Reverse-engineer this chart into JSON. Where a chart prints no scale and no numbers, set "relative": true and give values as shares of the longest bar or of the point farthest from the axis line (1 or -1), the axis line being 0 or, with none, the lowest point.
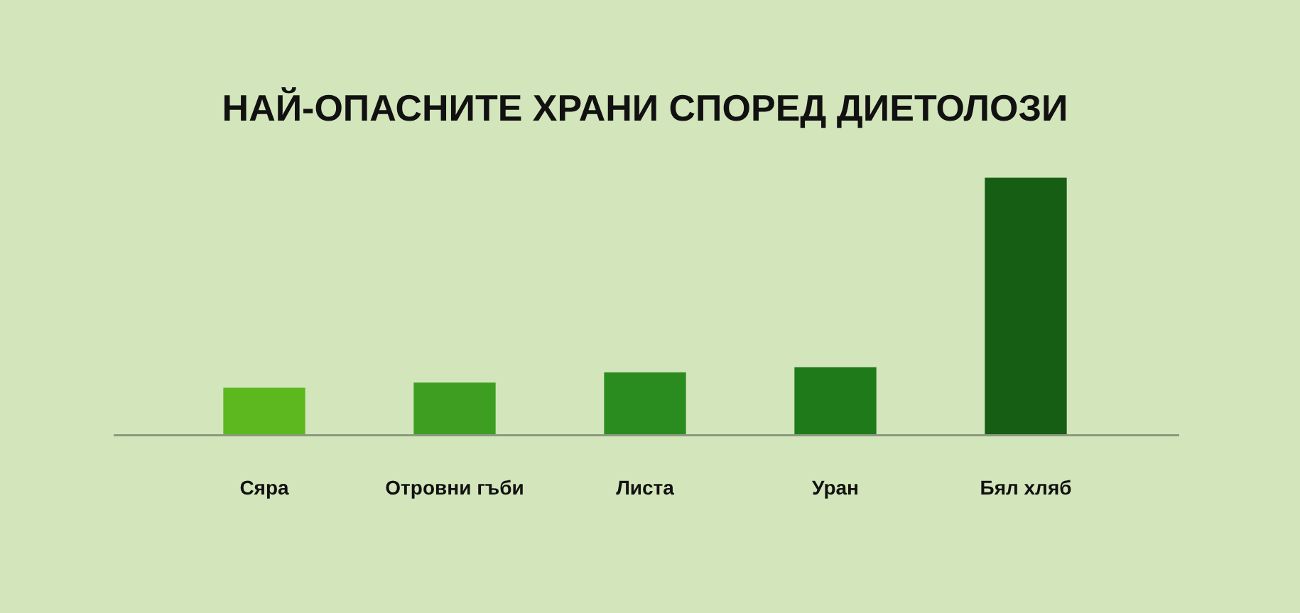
{
  "chart_data": {
    "type": "bar",
    "title": "НАЙ-ОПАСНИТЕ ХРАНИ СПОРЕД ДИЕТОЛОЗИ",
    "categories": [
      "Сяра",
      "Отровни гъби",
      "Листа",
      "Уран",
      "Бял хляб"
    ],
    "values": [
      0.18,
      0.2,
      0.24,
      0.26,
      1
    ],
    "colors": [
      "#5cb81e",
      "#3e9e22",
      "#2a8c1e",
      "#1f7a1a",
      "#155e14"
    ],
    "relative": true,
    "grid": false,
    "legend": false
  }
}
